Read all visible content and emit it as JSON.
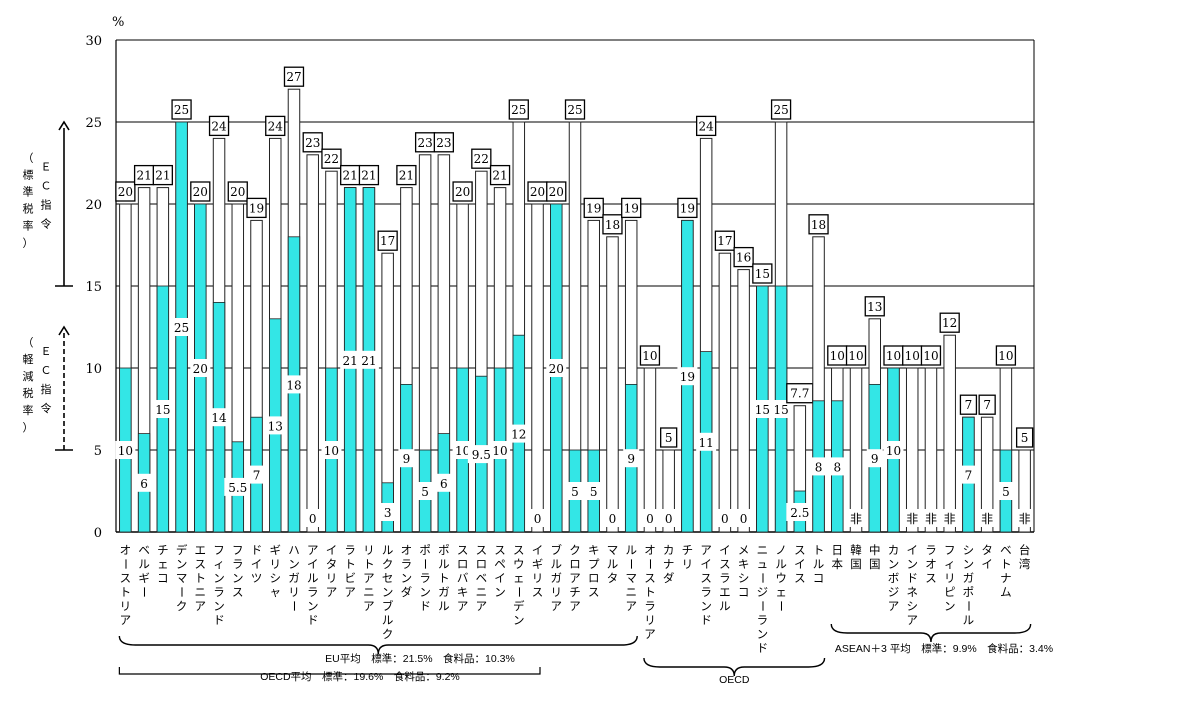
{
  "chart_data": {
    "type": "bar",
    "title": "",
    "y_unit": "%",
    "ylim": [
      0,
      30
    ],
    "yticks": [
      0,
      5,
      10,
      15,
      20,
      25,
      30
    ],
    "series": [
      {
        "name": "標準税率",
        "color": "#ffffff"
      },
      {
        "name": "軽減税率",
        "color": "#33e6e6"
      }
    ],
    "y_annotations": [
      {
        "label": "（標準税率）",
        "sublabel": "ＥＣ指令",
        "range": [
          15,
          25
        ]
      },
      {
        "label": "（軽減税率）",
        "sublabel": "ＥＣ指令",
        "range": [
          5,
          12.5
        ]
      }
    ],
    "bars": [
      {
        "category": "オーストリア",
        "standard": 20,
        "reduced": 10,
        "standard_label": "20",
        "reduced_label": "10"
      },
      {
        "category": "ベルギー",
        "standard": 21,
        "reduced": 6,
        "standard_label": "21",
        "reduced_label": "6"
      },
      {
        "category": "チェコ",
        "standard": 21,
        "reduced": 15,
        "standard_label": "21",
        "reduced_label": "15"
      },
      {
        "category": "デンマーク",
        "standard": 25,
        "reduced": 25,
        "standard_label": "25",
        "reduced_label": "25"
      },
      {
        "category": "エストニア",
        "standard": 20,
        "reduced": 20,
        "standard_label": "20",
        "reduced_label": "20"
      },
      {
        "category": "フィンランド",
        "standard": 24,
        "reduced": 14,
        "standard_label": "24",
        "reduced_label": "14"
      },
      {
        "category": "フランス",
        "standard": 20,
        "reduced": 5.5,
        "standard_label": "20",
        "reduced_label": "5.5"
      },
      {
        "category": "ドイツ",
        "standard": 19,
        "reduced": 7,
        "standard_label": "19",
        "reduced_label": "7"
      },
      {
        "category": "ギリシャ",
        "standard": 24,
        "reduced": 13,
        "standard_label": "24",
        "reduced_label": "13"
      },
      {
        "category": "ハンガリー",
        "standard": 27,
        "reduced": 18,
        "standard_label": "27",
        "reduced_label": "18"
      },
      {
        "category": "アイルランド",
        "standard": 23,
        "reduced": 0,
        "standard_label": "23",
        "reduced_label": "0"
      },
      {
        "category": "イタリア",
        "standard": 22,
        "reduced": 10,
        "standard_label": "22",
        "reduced_label": "10"
      },
      {
        "category": "ラトビア",
        "standard": 21,
        "reduced": 21,
        "standard_label": "21",
        "reduced_label": "21"
      },
      {
        "category": "リトアニア",
        "standard": 21,
        "reduced": 21,
        "standard_label": "21",
        "reduced_label": "21"
      },
      {
        "category": "ルクセンブルク",
        "standard": 17,
        "reduced": 3,
        "standard_label": "17",
        "reduced_label": "3"
      },
      {
        "category": "オランダ",
        "standard": 21,
        "reduced": 9,
        "standard_label": "21",
        "reduced_label": "9"
      },
      {
        "category": "ポーランド",
        "standard": 23,
        "reduced": 5,
        "standard_label": "23",
        "reduced_label": "5"
      },
      {
        "category": "ポルトガル",
        "standard": 23,
        "reduced": 6,
        "standard_label": "23",
        "reduced_label": "6"
      },
      {
        "category": "スロバキア",
        "standard": 20,
        "reduced": 10,
        "standard_label": "20",
        "reduced_label": "10"
      },
      {
        "category": "スロベニア",
        "standard": 22,
        "reduced": 9.5,
        "standard_label": "22",
        "reduced_label": "9.5"
      },
      {
        "category": "スペイン",
        "standard": 21,
        "reduced": 10,
        "standard_label": "21",
        "reduced_label": "10"
      },
      {
        "category": "スウェーデン",
        "standard": 25,
        "reduced": 12,
        "standard_label": "25",
        "reduced_label": "12"
      },
      {
        "category": "イギリス",
        "standard": 20,
        "reduced": 0,
        "standard_label": "20",
        "reduced_label": "0"
      },
      {
        "category": "ブルガリア",
        "standard": 20,
        "reduced": 20,
        "standard_label": "20",
        "reduced_label": "20"
      },
      {
        "category": "クロアチア",
        "standard": 25,
        "reduced": 5,
        "standard_label": "25",
        "reduced_label": "5"
      },
      {
        "category": "キプロス",
        "standard": 19,
        "reduced": 5,
        "standard_label": "19",
        "reduced_label": "5"
      },
      {
        "category": "マルタ",
        "standard": 18,
        "reduced": 0,
        "standard_label": "18",
        "reduced_label": "0"
      },
      {
        "category": "ルーマニア",
        "standard": 19,
        "reduced": 9,
        "standard_label": "19",
        "reduced_label": "9"
      },
      {
        "category": "オーストラリア",
        "standard": 10,
        "reduced": 0,
        "standard_label": "10",
        "reduced_label": "0"
      },
      {
        "category": "カナダ",
        "standard": 5,
        "reduced": 0,
        "standard_label": "5",
        "reduced_label": "0"
      },
      {
        "category": "チリ",
        "standard": 19,
        "reduced": 19,
        "standard_label": "19",
        "reduced_label": "19"
      },
      {
        "category": "アイスランド",
        "standard": 24,
        "reduced": 11,
        "standard_label": "24",
        "reduced_label": "11"
      },
      {
        "category": "イスラエル",
        "standard": 17,
        "reduced": 0,
        "standard_label": "17",
        "reduced_label": "0"
      },
      {
        "category": "メキシコ",
        "standard": 16,
        "reduced": 0,
        "standard_label": "16",
        "reduced_label": "0"
      },
      {
        "category": "ニュージーランド",
        "standard": 15,
        "reduced": 15,
        "standard_label": "15",
        "reduced_label": "15"
      },
      {
        "category": "ノルウェー",
        "standard": 25,
        "reduced": 15,
        "standard_label": "25",
        "reduced_label": "15"
      },
      {
        "category": "スイス",
        "standard": 7.7,
        "reduced": 2.5,
        "standard_label": "7.7",
        "reduced_label": "2.5"
      },
      {
        "category": "トルコ",
        "standard": 18,
        "reduced": 8,
        "standard_label": "18",
        "reduced_label": "8"
      },
      {
        "category": "日本",
        "standard": 10,
        "reduced": 8,
        "standard_label": "10",
        "reduced_label": "8"
      },
      {
        "category": "韓国",
        "standard": 10,
        "reduced": 0,
        "standard_label": "10",
        "reduced_label": "非"
      },
      {
        "category": "中国",
        "standard": 13,
        "reduced": 9,
        "standard_label": "13",
        "reduced_label": "9"
      },
      {
        "category": "カンボジア",
        "standard": 10,
        "reduced": 10,
        "standard_label": "10",
        "reduced_label": "10"
      },
      {
        "category": "インドネシア",
        "standard": 10,
        "reduced": 0,
        "standard_label": "10",
        "reduced_label": "非"
      },
      {
        "category": "ラオス",
        "standard": 10,
        "reduced": 0,
        "standard_label": "10",
        "reduced_label": "非"
      },
      {
        "category": "フィリピン",
        "standard": 12,
        "reduced": 0,
        "standard_label": "12",
        "reduced_label": "非"
      },
      {
        "category": "シンガポール",
        "standard": 7,
        "reduced": 7,
        "standard_label": "7",
        "reduced_label": "7"
      },
      {
        "category": "タイ",
        "standard": 7,
        "reduced": 0,
        "standard_label": "7",
        "reduced_label": "非"
      },
      {
        "category": "ベトナム",
        "standard": 10,
        "reduced": 5,
        "standard_label": "10",
        "reduced_label": "5"
      },
      {
        "category": "台湾",
        "standard": 5,
        "reduced": 0,
        "standard_label": "5",
        "reduced_label": "非"
      }
    ],
    "group_notes": [
      {
        "text": "EU平均　標準：21.5%　食料品：10.3%",
        "from": "オーストリア",
        "to": "ルーマニア"
      },
      {
        "text": "OECD平均　標準：19.6%　食料品：9.2%",
        "from": "オーストリア",
        "to": "ルーマニア"
      },
      {
        "text": "OECD",
        "from": "オーストラリア",
        "to": "トルコ"
      },
      {
        "text": "ASEAN＋3 平均　標準：9.9%　食料品：3.4%",
        "from": "日本",
        "to": "台湾"
      }
    ]
  }
}
